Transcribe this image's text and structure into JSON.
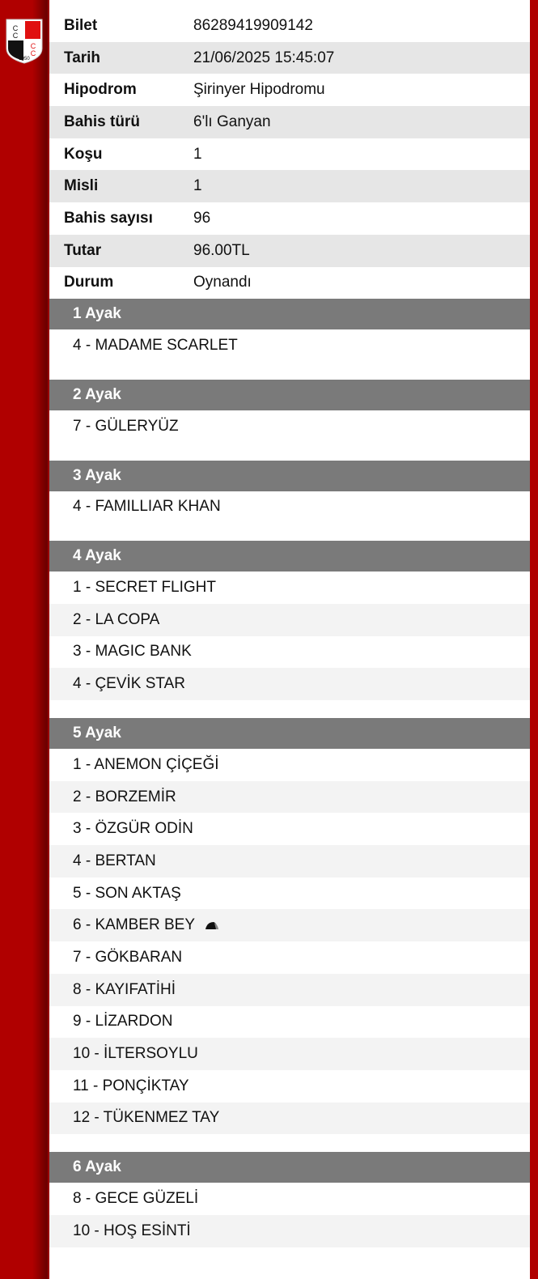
{
  "info": [
    {
      "label": "Bilet",
      "value": "86289419909142"
    },
    {
      "label": "Tarih",
      "value": "21/06/2025 15:45:07"
    },
    {
      "label": "Hipodrom",
      "value": "Şirinyer Hipodromu"
    },
    {
      "label": "Bahis türü",
      "value": "6'lı Ganyan"
    },
    {
      "label": "Koşu",
      "value": "1"
    },
    {
      "label": "Misli",
      "value": "1"
    },
    {
      "label": "Bahis sayısı",
      "value": "96"
    },
    {
      "label": "Tutar",
      "value": "96.00TL"
    },
    {
      "label": "Durum",
      "value": "Oynandı"
    }
  ],
  "legs": [
    {
      "title": "1 Ayak",
      "horses": [
        "4 - MADAME SCARLET"
      ]
    },
    {
      "title": "2 Ayak",
      "horses": [
        "7 - GÜLERYÜZ"
      ]
    },
    {
      "title": "3 Ayak",
      "horses": [
        "4 - FAMILLIAR KHAN"
      ]
    },
    {
      "title": "4 Ayak",
      "horses": [
        "1 - SECRET FLIGHT",
        "2 - LA COPA",
        "3 - MAGIC BANK",
        "4 - ÇEVİK STAR"
      ]
    },
    {
      "title": "5 Ayak",
      "horses": [
        "1 - ANEMON ÇİÇEĞİ",
        "2 - BORZEMİR",
        "3 - ÖZGÜR ODİN",
        "4 - BERTAN",
        "5 - SON AKTAŞ",
        "6 - KAMBER BEY",
        "7 - GÖKBARAN",
        "8 - KAYIFATİHİ",
        "9 - LİZARDON",
        "10 - İLTERSOYLU",
        "11 - PONÇİKTAY",
        "12 - TÜKENMEZ TAY"
      ]
    },
    {
      "title": "6 Ayak",
      "horses": [
        "8 - GECE GÜZELİ",
        "10 - HOŞ ESİNTİ"
      ]
    }
  ],
  "jockey_cap_marker": {
    "leg": 4,
    "horse": 5,
    "icon": "jockey-cap-icon"
  },
  "colors": {
    "brand_red": "#b00000",
    "leg_header": "#7a7a7a"
  }
}
